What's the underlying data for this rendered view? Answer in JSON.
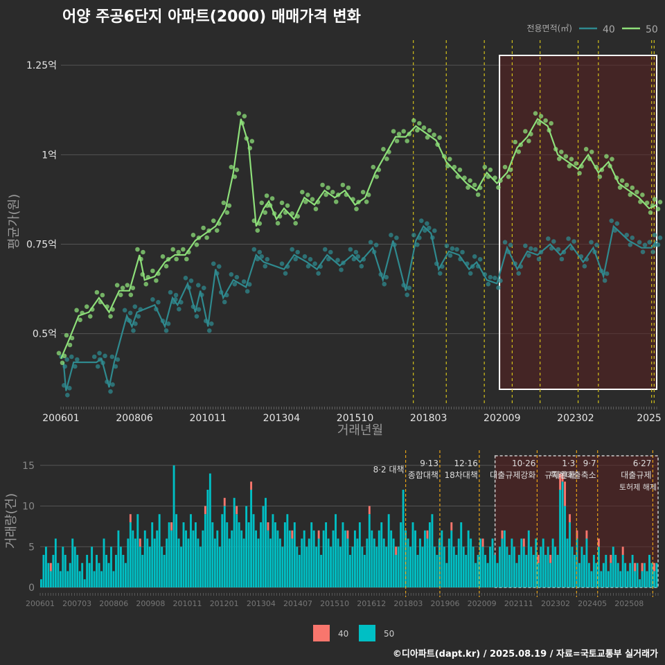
{
  "title": "어양 주공6단지 아파트(2000) 매매가격 변화",
  "credit": "©디아파트(dapt.kr) / 2025.08.19 / 자료=국토교통부 실거래가",
  "colors": {
    "s40_line": "#2f8a8f",
    "s50_line": "#8ee07a",
    "bar40": "#f8766d",
    "bar50": "#00bfc4",
    "vline": "#d4c21a",
    "vline2": "#e8a317",
    "shade": "#5a2020"
  },
  "chart_data": [
    {
      "type": "line",
      "title": "",
      "xlabel": "거래년월",
      "ylabel": "평균가(원)",
      "legend_title": "전용면적(㎡)",
      "legend_position": "top-right",
      "ylim": [
        0.3,
        1.32
      ],
      "y_ticks": [
        {
          "v": 0.5,
          "label": "0.5억"
        },
        {
          "v": 0.75,
          "label": "0.75억"
        },
        {
          "v": 1.0,
          "label": "1억"
        },
        {
          "v": 1.25,
          "label": "1.25억"
        }
      ],
      "x_ticks": [
        "200601",
        "200806",
        "201011",
        "201304",
        "201510",
        "201803",
        "202009",
        "202302",
        "2025"
      ],
      "vertical_lines": [
        "2017-08",
        "2018-09",
        "2019-12",
        "2020-11",
        "2021-10",
        "2023-01",
        "2023-09",
        "2025-06",
        "2025-07"
      ],
      "highlight_range": [
        "2020-06",
        "2025-08"
      ],
      "series": [
        {
          "name": "40",
          "x": [
            "2006-02",
            "2006-03",
            "2006-06",
            "2007-03",
            "2007-05",
            "2007-08",
            "2007-10",
            "2008-03",
            "2008-05",
            "2008-07",
            "2009-02",
            "2009-06",
            "2009-09",
            "2009-11",
            "2010-03",
            "2010-06",
            "2010-08",
            "2010-11",
            "2011-02",
            "2011-05",
            "2011-09",
            "2012-02",
            "2012-06",
            "2012-09",
            "2013-05",
            "2013-09",
            "2014-02",
            "2014-06",
            "2014-10",
            "2015-03",
            "2015-08",
            "2015-11",
            "2016-04",
            "2016-08",
            "2016-12",
            "2017-05",
            "2017-09",
            "2017-12",
            "2018-03",
            "2018-06",
            "2018-10",
            "2019-02",
            "2019-06",
            "2019-09",
            "2020-01",
            "2020-05",
            "2020-09",
            "2021-01",
            "2021-05",
            "2021-09",
            "2022-02",
            "2022-06",
            "2022-10",
            "2023-03",
            "2023-07",
            "2023-11",
            "2024-03",
            "2024-09",
            "2025-02",
            "2025-06",
            "2025-08"
          ],
          "y": [
            0.42,
            0.34,
            0.42,
            0.42,
            0.43,
            0.35,
            0.42,
            0.55,
            0.52,
            0.56,
            0.58,
            0.52,
            0.6,
            0.58,
            0.64,
            0.56,
            0.62,
            0.52,
            0.68,
            0.6,
            0.65,
            0.63,
            0.72,
            0.7,
            0.68,
            0.72,
            0.7,
            0.68,
            0.72,
            0.69,
            0.72,
            0.7,
            0.74,
            0.65,
            0.76,
            0.62,
            0.76,
            0.8,
            0.78,
            0.68,
            0.73,
            0.72,
            0.68,
            0.7,
            0.65,
            0.64,
            0.74,
            0.68,
            0.73,
            0.72,
            0.75,
            0.72,
            0.75,
            0.7,
            0.74,
            0.66,
            0.8,
            0.76,
            0.74,
            0.74,
            0.76
          ]
        },
        {
          "name": "50",
          "x": [
            "2006-01",
            "2006-04",
            "2006-08",
            "2006-12",
            "2007-04",
            "2007-08",
            "2007-12",
            "2008-04",
            "2008-08",
            "2008-10",
            "2009-02",
            "2009-06",
            "2009-10",
            "2010-02",
            "2010-06",
            "2010-10",
            "2011-02",
            "2011-06",
            "2011-09",
            "2011-12",
            "2012-03",
            "2012-06",
            "2012-09",
            "2012-11",
            "2013-02",
            "2013-05",
            "2013-09",
            "2014-01",
            "2014-05",
            "2014-09",
            "2015-01",
            "2015-05",
            "2015-09",
            "2016-01",
            "2016-05",
            "2016-09",
            "2017-01",
            "2017-05",
            "2017-09",
            "2018-01",
            "2018-05",
            "2018-09",
            "2019-01",
            "2019-05",
            "2019-09",
            "2020-01",
            "2020-05",
            "2020-09",
            "2021-01",
            "2021-05",
            "2021-09",
            "2022-01",
            "2022-05",
            "2022-09",
            "2023-01",
            "2023-05",
            "2023-09",
            "2024-01",
            "2024-05",
            "2024-09",
            "2025-01",
            "2025-05",
            "2025-08"
          ],
          "y": [
            0.43,
            0.48,
            0.55,
            0.56,
            0.6,
            0.56,
            0.62,
            0.62,
            0.72,
            0.65,
            0.66,
            0.7,
            0.72,
            0.72,
            0.76,
            0.78,
            0.8,
            0.85,
            0.95,
            1.1,
            1.03,
            0.8,
            0.85,
            0.87,
            0.82,
            0.85,
            0.82,
            0.88,
            0.86,
            0.9,
            0.88,
            0.9,
            0.86,
            0.88,
            0.95,
            1.0,
            1.05,
            1.05,
            1.08,
            1.06,
            1.04,
            0.98,
            0.95,
            0.92,
            0.9,
            0.95,
            0.92,
            0.95,
            1.02,
            1.05,
            1.1,
            1.08,
            1.0,
            0.98,
            0.96,
            1.0,
            0.95,
            0.98,
            0.92,
            0.9,
            0.88,
            0.85,
            0.86
          ]
        }
      ]
    },
    {
      "type": "bar",
      "title": "",
      "ylabel": "거래량(건)",
      "ylim": [
        0,
        16
      ],
      "y_ticks": [
        0,
        5,
        10,
        15
      ],
      "x_ticks": [
        "200601",
        "200703",
        "200806",
        "200908",
        "201011",
        "201201",
        "201304",
        "201407",
        "201510",
        "201612",
        "201803",
        "201906",
        "202009",
        "202111",
        "202302",
        "202405",
        "202508"
      ],
      "legend_position": "bottom",
      "legend": [
        "40",
        "50"
      ],
      "annotations": [
        {
          "x": "2017-08",
          "lines": [
            "8·2 대책"
          ]
        },
        {
          "x": "2018-09",
          "lines": [
            "9·13",
            "종합대책"
          ]
        },
        {
          "x": "2019-12",
          "lines": [
            "12·16",
            "18차대책"
          ]
        },
        {
          "x": "2021-10",
          "lines": [
            "10·26",
            "대출규제강화"
          ]
        },
        {
          "x": "2023-01",
          "lines": [
            "1·3",
            "규제완화"
          ]
        },
        {
          "x": "2023-09",
          "lines": [
            "9·7",
            "특례대출축소"
          ]
        },
        {
          "x": "2025-06",
          "lines": [
            "6·27",
            "대출규제"
          ]
        }
      ],
      "extra_label": "토허제 해제",
      "highlight_range": [
        "2020-06",
        "2025-08"
      ],
      "series": [
        {
          "name": "50",
          "values": [
            1,
            4,
            5,
            3,
            2,
            4,
            6,
            3,
            2,
            5,
            4,
            2,
            3,
            6,
            5,
            4,
            2,
            3,
            1,
            4,
            3,
            5,
            2,
            4,
            3,
            2,
            6,
            4,
            3,
            5,
            2,
            4,
            7,
            5,
            4,
            3,
            6,
            8,
            7,
            6,
            9,
            5,
            4,
            7,
            6,
            5,
            8,
            6,
            7,
            9,
            5,
            4,
            6,
            8,
            7,
            15,
            9,
            6,
            5,
            8,
            7,
            6,
            9,
            7,
            8,
            6,
            5,
            7,
            9,
            12,
            14,
            8,
            6,
            7,
            5,
            9,
            10,
            8,
            6,
            7,
            11,
            9,
            8,
            7,
            6,
            10,
            8,
            12,
            9,
            7,
            6,
            8,
            10,
            11,
            7,
            6,
            9,
            8,
            7,
            6,
            5,
            8,
            9,
            7,
            6,
            8,
            5,
            4,
            6,
            7,
            5,
            6,
            8,
            7,
            5,
            6,
            4,
            7,
            8,
            6,
            5,
            7,
            9,
            6,
            5,
            8,
            7,
            6,
            4,
            5,
            7,
            6,
            8,
            5,
            4,
            6,
            9,
            7,
            6,
            5,
            7,
            8,
            6,
            5,
            9,
            7,
            6,
            4,
            5,
            8,
            12,
            7,
            6,
            5,
            8,
            7,
            4,
            6,
            5,
            7,
            6,
            8,
            9,
            5,
            4,
            6,
            7,
            5,
            3,
            6,
            7,
            5,
            4,
            6,
            8,
            5,
            4,
            7,
            6,
            5,
            3,
            4,
            6,
            5,
            4,
            3,
            5,
            6,
            4,
            3,
            5,
            6,
            7,
            5,
            4,
            6,
            5,
            3,
            4,
            6,
            5,
            4,
            7,
            5,
            4,
            6,
            3,
            5,
            6,
            4,
            5,
            3,
            6,
            5,
            4,
            12,
            13,
            10,
            6,
            8,
            5,
            4,
            6,
            3,
            5,
            4,
            6,
            3,
            2,
            4,
            3,
            5,
            2,
            3,
            4,
            2,
            3,
            5,
            4,
            3,
            2,
            4,
            3,
            2,
            3,
            4,
            2,
            3,
            1,
            2,
            3,
            2,
            4,
            3,
            2,
            3
          ]
        },
        {
          "name": "40",
          "values": [
            0,
            0,
            0,
            0,
            1,
            0,
            0,
            0,
            0,
            0,
            0,
            0,
            0,
            0,
            0,
            0,
            0,
            0,
            0,
            0,
            0,
            0,
            0,
            0,
            0,
            0,
            0,
            0,
            0,
            0,
            0,
            0,
            0,
            0,
            0,
            0,
            0,
            1,
            0,
            0,
            0,
            1,
            0,
            0,
            0,
            0,
            0,
            0,
            0,
            0,
            0,
            0,
            0,
            0,
            1,
            0,
            0,
            0,
            0,
            0,
            0,
            0,
            0,
            0,
            0,
            0,
            0,
            0,
            1,
            0,
            0,
            0,
            0,
            0,
            0,
            0,
            1,
            0,
            0,
            0,
            0,
            1,
            0,
            0,
            0,
            0,
            0,
            1,
            0,
            0,
            0,
            0,
            0,
            0,
            1,
            0,
            0,
            0,
            0,
            0,
            0,
            0,
            0,
            0,
            1,
            0,
            0,
            0,
            0,
            0,
            0,
            0,
            0,
            0,
            0,
            1,
            0,
            0,
            0,
            0,
            0,
            0,
            0,
            0,
            0,
            0,
            0,
            1,
            0,
            0,
            0,
            0,
            0,
            0,
            0,
            0,
            1,
            0,
            0,
            0,
            0,
            0,
            0,
            0,
            0,
            0,
            0,
            1,
            0,
            0,
            0,
            0,
            0,
            0,
            0,
            0,
            0,
            0,
            0,
            0,
            1,
            0,
            0,
            0,
            0,
            0,
            0,
            0,
            0,
            0,
            1,
            0,
            0,
            0,
            0,
            0,
            0,
            0,
            0,
            0,
            0,
            0,
            0,
            1,
            0,
            0,
            0,
            0,
            0,
            0,
            0,
            1,
            0,
            0,
            0,
            0,
            0,
            0,
            0,
            0,
            1,
            0,
            0,
            0,
            0,
            0,
            1,
            0,
            0,
            0,
            0,
            1,
            0,
            0,
            0,
            2,
            1,
            3,
            0,
            1,
            0,
            0,
            1,
            0,
            0,
            0,
            1,
            0,
            0,
            0,
            0,
            1,
            0,
            0,
            0,
            0,
            1,
            0,
            0,
            0,
            0,
            1,
            0,
            0,
            0,
            0,
            1,
            0,
            0,
            1,
            0,
            0,
            0,
            0,
            1
          ]
        }
      ]
    }
  ]
}
